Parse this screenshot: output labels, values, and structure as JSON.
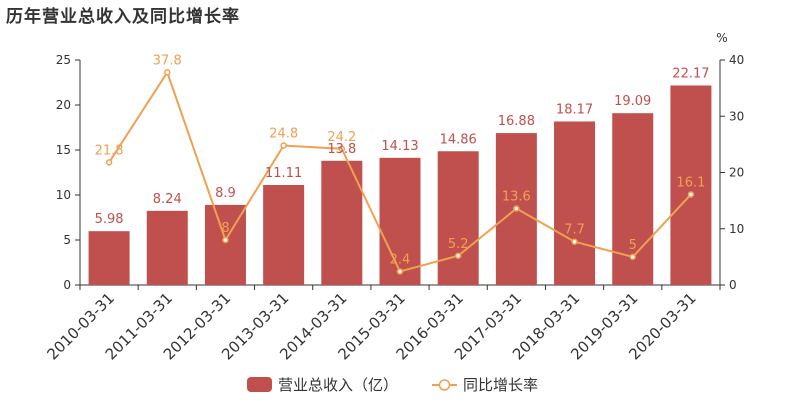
{
  "title": "历年营业总收入及同比增长率",
  "colors": {
    "bar": "#c0504d",
    "line": "#f0a050",
    "axis": "#333333",
    "grid": "#dddddd"
  },
  "chart_data": {
    "type": "bar",
    "categories": [
      "2010-03-31",
      "2011-03-31",
      "2012-03-31",
      "2013-03-31",
      "2014-03-31",
      "2015-03-31",
      "2016-03-31",
      "2017-03-31",
      "2018-03-31",
      "2019-03-31",
      "2020-03-31"
    ],
    "series": [
      {
        "name": "营业总收入（亿）",
        "type": "bar",
        "axis": "left",
        "values": [
          5.98,
          8.24,
          8.9,
          11.11,
          13.8,
          14.13,
          14.86,
          16.88,
          18.17,
          19.09,
          22.17
        ]
      },
      {
        "name": "同比增长率",
        "type": "line",
        "axis": "right",
        "values": [
          21.8,
          37.8,
          8,
          24.8,
          24.2,
          2.4,
          5.2,
          13.6,
          7.7,
          5,
          16.1
        ]
      }
    ],
    "ylim_left": [
      0,
      25
    ],
    "yticks_left": [
      0,
      5,
      10,
      15,
      20,
      25
    ],
    "ylim_right": [
      0,
      40
    ],
    "yticks_right": [
      0,
      10,
      20,
      30,
      40
    ],
    "ylabel_right": "%",
    "legend_position": "bottom-center",
    "grid": false
  }
}
